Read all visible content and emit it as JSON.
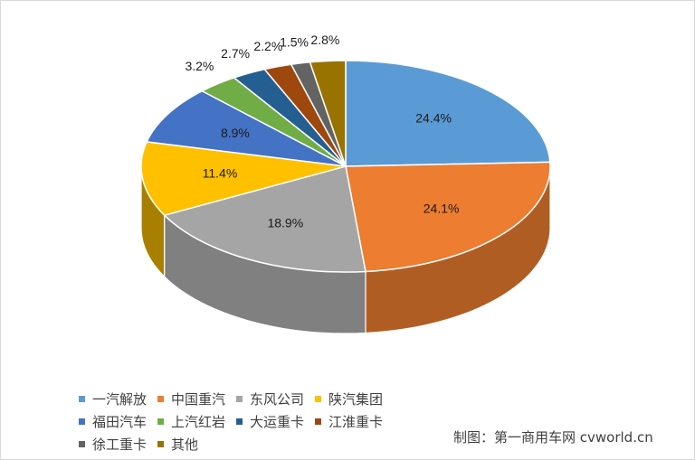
{
  "chart_data": {
    "type": "pie",
    "title": "",
    "categories": [
      "一汽解放",
      "中国重汽",
      "东风公司",
      "陕汽集团",
      "福田汽车",
      "上汽红岩",
      "大运重卡",
      "江淮重卡",
      "徐工重卡",
      "其他"
    ],
    "values": [
      24.4,
      24.1,
      18.9,
      11.4,
      8.9,
      3.2,
      2.7,
      2.2,
      1.5,
      2.8
    ],
    "value_labels": [
      "24.4%",
      "24.1%",
      "18.9%",
      "11.4%",
      "8.9%",
      "3.2%",
      "2.7%",
      "2.2%",
      "1.5%",
      "2.8%"
    ],
    "colors": [
      "#5b9bd5",
      "#ed7d31",
      "#a5a5a5",
      "#ffc000",
      "#4472c4",
      "#70ad47",
      "#255e91",
      "#9e480e",
      "#636363",
      "#997300"
    ],
    "style": "3d",
    "legend_position": "bottom-left"
  },
  "credit": "制图：第一商用车网 cvworld.cn"
}
